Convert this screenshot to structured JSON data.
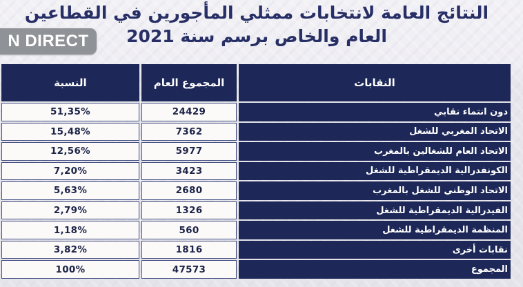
{
  "badge": {
    "label": "N DIRECT"
  },
  "title": {
    "line1": "النتائج العامة لانتخابات ممثلي المأجورين في القطاعين",
    "line2": "العام والخاص برسم سنة 2021"
  },
  "table": {
    "headers": {
      "unions": "النقابات",
      "total": "المجموع العام",
      "percent": "النسبة"
    },
    "rows": [
      {
        "union": "دون انتماء نقابي",
        "total": "24429",
        "percent": "51,35%"
      },
      {
        "union": "الاتحاد المغربي للشغل",
        "total": "7362",
        "percent": "15,48%"
      },
      {
        "union": "الاتحاد العام للشغالين بالمغرب",
        "total": "5977",
        "percent": "12,56%"
      },
      {
        "union": "الكونفدرالية الديمقراطية للشغل",
        "total": "3423",
        "percent": "7,20%"
      },
      {
        "union": "الاتحاد الوطني للشغل بالمغرب",
        "total": "2680",
        "percent": "5,63%"
      },
      {
        "union": "الفيدرالية الديمقراطية للشغل",
        "total": "1326",
        "percent": "2,79%"
      },
      {
        "union": "المنظمة الديمقراطية للشغل",
        "total": "560",
        "percent": "1,18%"
      },
      {
        "union": "نقابات أخرى",
        "total": "1816",
        "percent": "3,82%"
      },
      {
        "union": "المجموع",
        "total": "47573",
        "percent": "100%"
      }
    ]
  },
  "colors": {
    "navy": "#1d2858",
    "title_text": "#272f66",
    "cell_text": "#1c2347",
    "cell_bg": "#fbfaf9",
    "badge_bg": "#8f9296",
    "page_bg": "#e7e6ec"
  },
  "chart_data": {
    "type": "table",
    "title": "النتائج العامة لانتخابات ممثلي المأجورين في القطاعين العام والخاص برسم سنة 2021",
    "columns": [
      "النقابات",
      "المجموع العام",
      "النسبة"
    ],
    "rows": [
      [
        "دون انتماء نقابي",
        24429,
        "51,35%"
      ],
      [
        "الاتحاد المغربي للشغل",
        7362,
        "15,48%"
      ],
      [
        "الاتحاد العام للشغالين بالمغرب",
        5977,
        "12,56%"
      ],
      [
        "الكونفدرالية الديمقراطية للشغل",
        3423,
        "7,20%"
      ],
      [
        "الاتحاد الوطني للشغل بالمغرب",
        2680,
        "5,63%"
      ],
      [
        "الفيدرالية الديمقراطية للشغل",
        1326,
        "2,79%"
      ],
      [
        "المنظمة الديمقراطية للشغل",
        560,
        "1,18%"
      ],
      [
        "نقابات أخرى",
        1816,
        "3,82%"
      ]
    ],
    "total_row": [
      "المجموع",
      47573,
      "100%"
    ]
  }
}
